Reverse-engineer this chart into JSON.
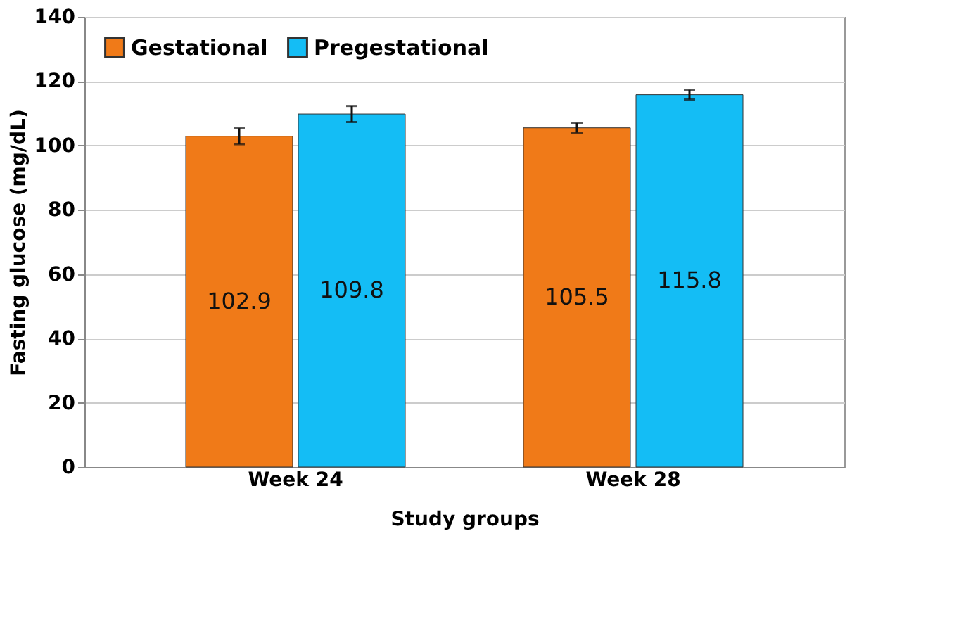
{
  "chart_data": {
    "type": "bar",
    "xlabel": "Study groups",
    "ylabel": "Fasting glucose (mg/dL)",
    "categories": [
      "Week 24",
      "Week 28"
    ],
    "series": [
      {
        "name": "Gestational",
        "color": "#f07a18",
        "values": [
          102.9,
          105.5
        ],
        "errors": [
          2.5,
          1.5
        ]
      },
      {
        "name": "Pregestational",
        "color": "#14bdf5",
        "values": [
          109.8,
          115.8
        ],
        "errors": [
          2.5,
          1.5
        ]
      }
    ],
    "ylim": [
      0,
      140
    ],
    "yticks": [
      0,
      20,
      40,
      60,
      80,
      100,
      120,
      140
    ],
    "grid": "y",
    "legend": "top left",
    "data_labels": true
  }
}
